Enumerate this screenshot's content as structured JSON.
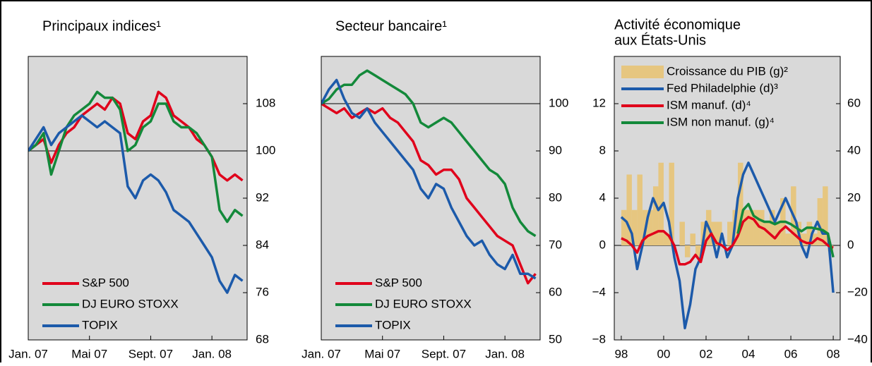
{
  "chart_data": [
    {
      "type": "line",
      "title": "Principaux indices¹",
      "yaxis_side": "right",
      "legend": "lower left",
      "reference_line": 100,
      "x": [
        0,
        0.5,
        1,
        1.5,
        2,
        2.5,
        3,
        3.5,
        4,
        4.5,
        5,
        5.5,
        6,
        6.5,
        7,
        7.5,
        8,
        8.5,
        9,
        9.5,
        10,
        10.5,
        11,
        11.5,
        12,
        12.5,
        13,
        13.5,
        14
      ],
      "xlim": [
        0,
        14.3
      ],
      "xticks": [
        {
          "value": 0,
          "label": "Jan. 07"
        },
        {
          "value": 4,
          "label": "Mai 07"
        },
        {
          "value": 8,
          "label": "Sept. 07"
        },
        {
          "value": 12,
          "label": "Jan. 08"
        }
      ],
      "ylim": [
        68,
        116
      ],
      "yticks": [
        68,
        76,
        84,
        92,
        100,
        108
      ],
      "series": [
        {
          "name": "S&P 500",
          "color": "#e0001b",
          "values": [
            100,
            101,
            102,
            98,
            101,
            103,
            104,
            106,
            107,
            108,
            107,
            109,
            108,
            103,
            102,
            105,
            106,
            110,
            109,
            106,
            105,
            104,
            102,
            101,
            99,
            96,
            95,
            96,
            95
          ]
        },
        {
          "name": "DJ EURO STOXX",
          "color": "#13893a",
          "values": [
            100,
            101,
            103,
            96,
            100,
            104,
            106,
            107,
            108,
            110,
            109,
            109,
            107,
            100,
            101,
            104,
            105,
            108,
            108,
            105,
            104,
            104,
            103,
            101,
            99,
            90,
            88,
            90,
            89
          ]
        },
        {
          "name": "TOPIX",
          "color": "#1c5aaa",
          "values": [
            100,
            102,
            104,
            101,
            103,
            104,
            105,
            106,
            105,
            104,
            105,
            104,
            103,
            94,
            92,
            95,
            96,
            95,
            93,
            90,
            89,
            88,
            86,
            84,
            82,
            78,
            76,
            79,
            78
          ]
        }
      ]
    },
    {
      "type": "line",
      "title": "Secteur bancaire¹",
      "yaxis_side": "right",
      "legend": "lower left",
      "reference_line": 100,
      "x": [
        0,
        0.5,
        1,
        1.5,
        2,
        2.5,
        3,
        3.5,
        4,
        4.5,
        5,
        5.5,
        6,
        6.5,
        7,
        7.5,
        8,
        8.5,
        9,
        9.5,
        10,
        10.5,
        11,
        11.5,
        12,
        12.5,
        13,
        13.5,
        14
      ],
      "xlim": [
        0,
        14.3
      ],
      "xticks": [
        {
          "value": 0,
          "label": "Jan. 07"
        },
        {
          "value": 4,
          "label": "Mai 07"
        },
        {
          "value": 8,
          "label": "Sept. 07"
        },
        {
          "value": 12,
          "label": "Jan. 08"
        }
      ],
      "ylim": [
        50,
        110
      ],
      "yticks": [
        50,
        60,
        70,
        80,
        90,
        100
      ],
      "series": [
        {
          "name": "S&P 500",
          "color": "#e0001b",
          "values": [
            100,
            99,
            98,
            99,
            97,
            98,
            99,
            98,
            99,
            97,
            96,
            94,
            92,
            88,
            87,
            85,
            86,
            86,
            84,
            80,
            78,
            76,
            74,
            72,
            71,
            70,
            66,
            62,
            64
          ]
        },
        {
          "name": "DJ EURO STOXX",
          "color": "#13893a",
          "values": [
            100,
            101,
            103,
            104,
            104,
            106,
            107,
            106,
            105,
            104,
            103,
            102,
            100,
            96,
            95,
            96,
            97,
            96,
            94,
            92,
            90,
            88,
            86,
            85,
            83,
            78,
            75,
            73,
            72
          ]
        },
        {
          "name": "TOPIX",
          "color": "#1c5aaa",
          "values": [
            100,
            103,
            105,
            101,
            98,
            97,
            99,
            96,
            94,
            92,
            90,
            88,
            86,
            82,
            80,
            83,
            82,
            78,
            75,
            72,
            70,
            71,
            68,
            66,
            65,
            68,
            64,
            64,
            63
          ]
        }
      ]
    },
    {
      "type": "line",
      "title": [
        "Activité économique",
        "aux États-Unis"
      ],
      "yaxis_side": "both",
      "legend": "upper left",
      "reference_line": 0,
      "x": [
        1998,
        1998.25,
        1998.5,
        1998.75,
        1999,
        1999.25,
        1999.5,
        1999.75,
        2000,
        2000.25,
        2000.5,
        2000.75,
        2001,
        2001.25,
        2001.5,
        2001.75,
        2002,
        2002.25,
        2002.5,
        2002.75,
        2003,
        2003.25,
        2003.5,
        2003.75,
        2004,
        2004.25,
        2004.5,
        2004.75,
        2005,
        2005.25,
        2005.5,
        2005.75,
        2006,
        2006.25,
        2006.5,
        2006.75,
        2007,
        2007.25,
        2007.5,
        2007.75,
        2008
      ],
      "xlim": [
        1997.67,
        2008.33
      ],
      "xticks": [
        {
          "value": 1998,
          "label": "98"
        },
        {
          "value": 2000,
          "label": "00"
        },
        {
          "value": 2002,
          "label": "02"
        },
        {
          "value": 2004,
          "label": "04"
        },
        {
          "value": 2006,
          "label": "06"
        },
        {
          "value": 2008,
          "label": "08"
        }
      ],
      "ylim": [
        -8,
        16
      ],
      "yticks": [
        {
          "value": -8,
          "label": "−8"
        },
        {
          "value": -4,
          "label": "−4"
        },
        0,
        4,
        8,
        12
      ],
      "y2lim": [
        -40,
        80
      ],
      "y2ticks": [
        {
          "value": -40,
          "label": "−40"
        },
        {
          "value": -20,
          "label": "−20"
        },
        0,
        20,
        40,
        60
      ],
      "series": [
        {
          "name": "Croissance du PIB (g)²",
          "type": "bar",
          "color": "#e6c680",
          "values": [
            3,
            6,
            3,
            6,
            3,
            3,
            5,
            7,
            1,
            7,
            0,
            2,
            -1,
            1,
            -1,
            2,
            3,
            2,
            2,
            0,
            2,
            3,
            7,
            3,
            3,
            3,
            3,
            2,
            3,
            2,
            4,
            1,
            5,
            2,
            1,
            2,
            1,
            4,
            5,
            -0.5,
            null
          ]
        },
        {
          "name": "Fed Philadelphie (d)³",
          "color": "#1c5aaa",
          "axis": "y2",
          "values": [
            12,
            10,
            5,
            -10,
            0,
            12,
            20,
            15,
            18,
            10,
            -5,
            -15,
            -35,
            -25,
            -10,
            -5,
            10,
            5,
            -5,
            5,
            -5,
            0,
            20,
            30,
            35,
            30,
            25,
            20,
            15,
            10,
            15,
            20,
            15,
            10,
            0,
            -5,
            5,
            10,
            5,
            5,
            -20
          ]
        },
        {
          "name": "ISM manuf. (d)⁴",
          "color": "#e0001b",
          "axis": "y2",
          "values": [
            3,
            2,
            0,
            -3,
            2,
            4,
            5,
            6,
            6,
            4,
            0,
            -8,
            -8,
            -7,
            -4,
            -7,
            2,
            5,
            1,
            0,
            -2,
            0,
            4,
            10,
            12,
            11,
            8,
            7,
            5,
            3,
            6,
            8,
            6,
            4,
            2,
            1,
            1,
            3,
            2,
            0,
            -1
          ]
        },
        {
          "name": "ISM non manuf. (g)⁴",
          "color": "#13893a",
          "values": [
            null,
            null,
            null,
            null,
            null,
            null,
            null,
            null,
            null,
            null,
            null,
            null,
            null,
            null,
            null,
            null,
            null,
            null,
            null,
            null,
            null,
            null,
            1,
            3,
            3.5,
            2.5,
            2.2,
            2,
            2,
            1.8,
            2,
            2,
            1.8,
            1.5,
            1.2,
            1.5,
            1.5,
            1.4,
            1.3,
            1,
            -1
          ]
        }
      ]
    }
  ]
}
